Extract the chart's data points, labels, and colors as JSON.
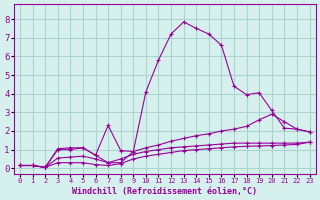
{
  "background_color": "#d6f0ed",
  "grid_color": "#aad4cf",
  "line_color": "#990099",
  "x_label": "Windchill (Refroidissement éolien,°C)",
  "x_ticks": [
    0,
    1,
    2,
    3,
    4,
    5,
    6,
    7,
    8,
    9,
    10,
    11,
    12,
    13,
    14,
    15,
    16,
    17,
    18,
    19,
    20,
    21,
    22,
    23
  ],
  "y_ticks": [
    0,
    1,
    2,
    3,
    4,
    5,
    6,
    7,
    8
  ],
  "ylim": [
    -0.3,
    8.8
  ],
  "xlim": [
    -0.5,
    23.5
  ],
  "series1_x": [
    0,
    1,
    2,
    3,
    4,
    5,
    6,
    7,
    8,
    9,
    10,
    11,
    12,
    13,
    14,
    15,
    16,
    17,
    18,
    19,
    20,
    21,
    22,
    23
  ],
  "series1_y": [
    0.15,
    0.15,
    0.05,
    1.0,
    1.0,
    1.1,
    0.7,
    0.3,
    0.3,
    0.9,
    4.1,
    5.8,
    7.2,
    7.85,
    7.5,
    7.2,
    6.6,
    4.4,
    3.95,
    4.05,
    3.1,
    2.15,
    2.1,
    1.95
  ],
  "series2_x": [
    0,
    1,
    2,
    3,
    4,
    5,
    6,
    7,
    8,
    9,
    10,
    11,
    12,
    13,
    14,
    15,
    16,
    17,
    18,
    19,
    20,
    21,
    22,
    23
  ],
  "series2_y": [
    0.15,
    0.15,
    0.05,
    1.05,
    1.1,
    1.1,
    0.7,
    2.3,
    0.95,
    0.9,
    1.1,
    1.25,
    1.45,
    1.6,
    1.75,
    1.85,
    2.0,
    2.1,
    2.25,
    2.6,
    2.9,
    2.5,
    2.1,
    1.95
  ],
  "series3_x": [
    0,
    1,
    2,
    3,
    4,
    5,
    6,
    7,
    8,
    9,
    10,
    11,
    12,
    13,
    14,
    15,
    16,
    17,
    18,
    19,
    20,
    21,
    22,
    23
  ],
  "series3_y": [
    0.15,
    0.15,
    0.05,
    0.55,
    0.6,
    0.65,
    0.5,
    0.3,
    0.5,
    0.75,
    0.9,
    1.0,
    1.1,
    1.15,
    1.2,
    1.25,
    1.3,
    1.35,
    1.35,
    1.35,
    1.35,
    1.35,
    1.35,
    1.4
  ],
  "series4_x": [
    0,
    1,
    2,
    3,
    4,
    5,
    6,
    7,
    8,
    9,
    10,
    11,
    12,
    13,
    14,
    15,
    16,
    17,
    18,
    19,
    20,
    21,
    22,
    23
  ],
  "series4_y": [
    0.15,
    0.15,
    0.05,
    0.3,
    0.3,
    0.3,
    0.2,
    0.15,
    0.25,
    0.5,
    0.65,
    0.75,
    0.85,
    0.95,
    1.0,
    1.05,
    1.1,
    1.15,
    1.18,
    1.2,
    1.22,
    1.25,
    1.28,
    1.4
  ]
}
